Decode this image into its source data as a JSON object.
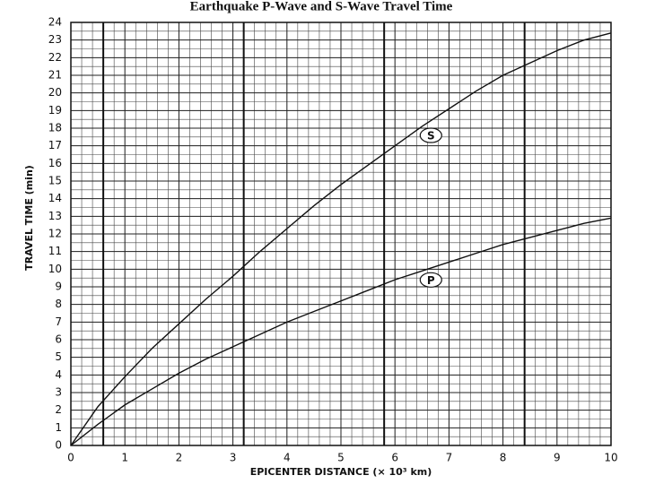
{
  "chart_data": {
    "type": "line",
    "title": "Earthquake P-Wave and S-Wave Travel Time",
    "x_label": "EPICENTER DISTANCE (× 10³ km)",
    "y_label": "TRAVEL TIME (min)",
    "x": [
      0,
      0.5,
      1,
      1.5,
      2,
      2.5,
      3,
      3.5,
      4,
      4.5,
      5,
      5.5,
      6,
      6.5,
      7,
      7.5,
      8,
      8.5,
      9,
      9.5,
      10
    ],
    "series": [
      {
        "name": "S",
        "color": "#111111",
        "values": [
          0,
          2.2,
          3.9,
          5.5,
          6.9,
          8.3,
          9.6,
          11.0,
          12.3,
          13.6,
          14.8,
          15.9,
          17.0,
          18.1,
          19.1,
          20.1,
          21.0,
          21.7,
          22.4,
          23.0,
          23.4
        ]
      },
      {
        "name": "P",
        "color": "#111111",
        "values": [
          0,
          1.2,
          2.3,
          3.2,
          4.1,
          4.9,
          5.6,
          6.3,
          7.0,
          7.6,
          8.2,
          8.8,
          9.4,
          9.9,
          10.4,
          10.9,
          11.4,
          11.8,
          12.2,
          12.6,
          12.9
        ]
      }
    ],
    "xlim": [
      0,
      10
    ],
    "ylim": [
      0,
      24
    ],
    "xticks": [
      0,
      1,
      2,
      3,
      4,
      5,
      6,
      7,
      8,
      9,
      10
    ],
    "yticks": [
      0,
      1,
      2,
      3,
      4,
      5,
      6,
      7,
      8,
      9,
      10,
      11,
      12,
      13,
      14,
      15,
      16,
      17,
      18,
      19,
      20,
      21,
      22,
      23,
      24
    ],
    "grid": true,
    "minor_grid": {
      "x": 0.2,
      "y": 0.5
    },
    "heavy_lines_x": [
      0.6,
      3.2,
      5.8,
      8.4
    ]
  }
}
